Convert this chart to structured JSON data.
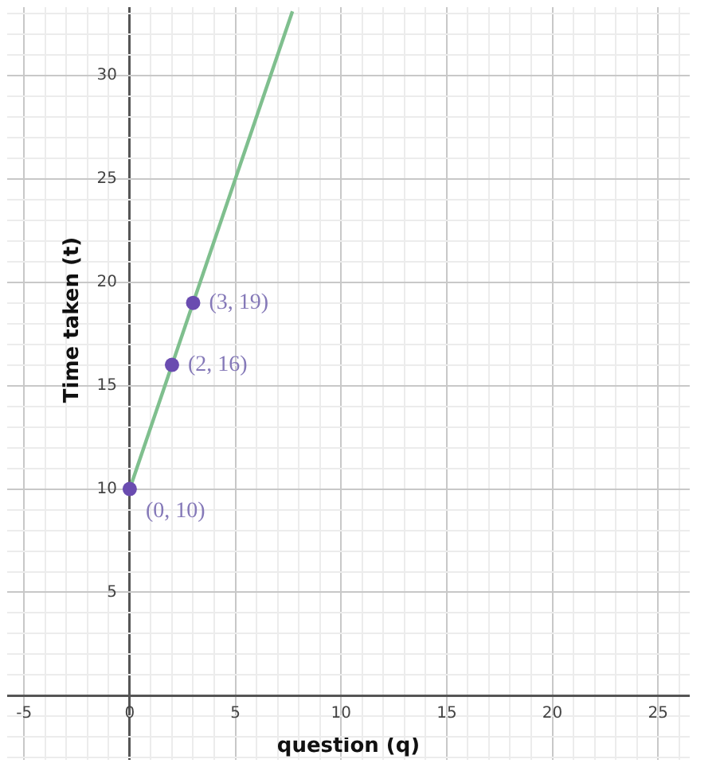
{
  "chart_data": {
    "type": "line",
    "xlabel": "question (q)",
    "ylabel": "Time taken (t)",
    "xlim": [
      -5.8,
      26.5
    ],
    "ylim": [
      -3.1,
      33.3
    ],
    "xticks": [
      {
        "value": -5,
        "label": "-5"
      },
      {
        "value": -4,
        "label": null
      },
      {
        "value": -3,
        "label": null
      },
      {
        "value": -2,
        "label": null
      },
      {
        "value": -1,
        "label": null
      },
      {
        "value": 0,
        "label": "0"
      },
      {
        "value": 1,
        "label": null
      },
      {
        "value": 2,
        "label": null
      },
      {
        "value": 3,
        "label": null
      },
      {
        "value": 4,
        "label": null
      },
      5,
      {
        "value": 6,
        "label": null
      },
      {
        "value": 7,
        "label": null
      },
      {
        "value": 8,
        "label": null
      },
      {
        "value": 9,
        "label": null
      },
      10,
      {
        "value": 11,
        "label": null
      },
      {
        "value": 12,
        "label": null
      },
      {
        "value": 13,
        "label": null
      },
      {
        "value": 14,
        "label": null
      },
      15,
      {
        "value": 16,
        "label": null
      },
      {
        "value": 17,
        "label": null
      },
      {
        "value": 18,
        "label": null
      },
      {
        "value": 19,
        "label": null
      },
      20,
      {
        "value": 21,
        "label": null
      },
      {
        "value": 22,
        "label": null
      },
      {
        "value": 23,
        "label": null
      },
      {
        "value": 24,
        "label": null
      },
      25,
      {
        "value": 26,
        "label": null
      }
    ],
    "yticks": [
      {
        "value": -3,
        "label": null
      },
      {
        "value": -2,
        "label": null
      },
      {
        "value": -1,
        "label": null
      },
      {
        "value": 0,
        "label": null
      },
      {
        "value": 1,
        "label": null
      },
      {
        "value": 2,
        "label": null
      },
      {
        "value": 3,
        "label": null
      },
      {
        "value": 4,
        "label": null
      },
      5,
      {
        "value": 6,
        "label": null
      },
      {
        "value": 7,
        "label": null
      },
      {
        "value": 8,
        "label": null
      },
      {
        "value": 9,
        "label": null
      },
      10,
      {
        "value": 11,
        "label": null
      },
      {
        "value": 12,
        "label": null
      },
      {
        "value": 13,
        "label": null
      },
      {
        "value": 14,
        "label": null
      },
      15,
      {
        "value": 16,
        "label": null
      },
      {
        "value": 17,
        "label": null
      },
      {
        "value": 18,
        "label": null
      },
      {
        "value": 19,
        "label": null
      },
      20,
      {
        "value": 21,
        "label": null
      },
      {
        "value": 22,
        "label": null
      },
      {
        "value": 23,
        "label": null
      },
      {
        "value": 24,
        "label": null
      },
      25,
      {
        "value": 26,
        "label": null
      },
      {
        "value": 27,
        "label": null
      },
      {
        "value": 28,
        "label": null
      },
      {
        "value": 29,
        "label": null
      },
      30,
      {
        "value": 31,
        "label": null
      },
      {
        "value": 32,
        "label": null
      },
      {
        "value": 33,
        "label": null
      }
    ],
    "grid": true,
    "legend": false,
    "series": [
      {
        "color": "#7fbf8e",
        "x": [
          0,
          7.7
        ],
        "values": [
          10,
          33.1
        ],
        "marker": "none"
      },
      {
        "type": "scatter",
        "color": "#6a4cb0",
        "x": [
          0,
          2,
          3
        ],
        "values": [
          10,
          16,
          19
        ],
        "marker": "circle"
      }
    ],
    "annotations": [
      {
        "text": "(0, 10)",
        "x": 0,
        "y": 10
      },
      {
        "text": "(2, 16)",
        "x": 2,
        "y": 16
      },
      {
        "text": "(3, 19)",
        "x": 3,
        "y": 19
      }
    ]
  }
}
